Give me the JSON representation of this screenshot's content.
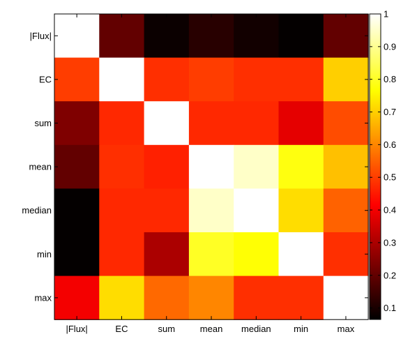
{
  "chart_data": {
    "type": "heatmap",
    "colormap": "hot",
    "grid": false,
    "legend": "colorbar-right",
    "labels": [
      "|Flux|",
      "EC",
      "sum",
      "mean",
      "median",
      "min",
      "max"
    ],
    "values": [
      [
        1.0,
        0.2,
        0.08,
        0.12,
        0.09,
        0.07,
        0.2
      ],
      [
        0.5,
        1.0,
        0.48,
        0.5,
        0.48,
        0.48,
        0.7
      ],
      [
        0.24,
        0.47,
        1.0,
        0.47,
        0.47,
        0.38,
        0.52
      ],
      [
        0.2,
        0.48,
        0.46,
        1.0,
        0.95,
        0.78,
        0.68
      ],
      [
        0.07,
        0.47,
        0.47,
        0.95,
        1.0,
        0.72,
        0.55
      ],
      [
        0.07,
        0.47,
        0.3,
        0.8,
        0.77,
        1.0,
        0.48
      ],
      [
        0.4,
        0.72,
        0.56,
        0.6,
        0.48,
        0.48,
        1.0
      ]
    ],
    "colorbar": {
      "min": 0.065,
      "max": 1.0,
      "ticks": [
        0.1,
        0.2,
        0.3,
        0.4,
        0.5,
        0.6,
        0.7,
        0.8,
        0.9,
        1
      ],
      "tick_labels": [
        "0.1",
        "0.2",
        "0.3",
        "0.4",
        "0.5",
        "0.6",
        "0.7",
        "0.8",
        "0.9",
        "1"
      ]
    }
  }
}
